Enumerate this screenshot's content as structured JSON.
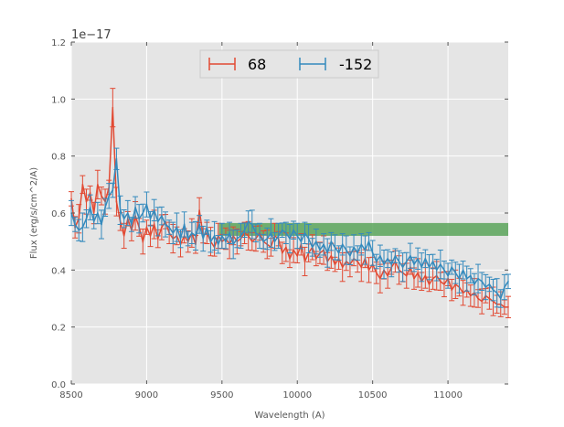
{
  "chart_data": {
    "type": "line",
    "title": "",
    "xlabel": "Wavelength (A)",
    "ylabel": "Flux (erg/s/cm^2/A)",
    "y_offset_label": "1e−17",
    "xlim": [
      8500,
      11400
    ],
    "ylim": [
      0.0,
      1.2
    ],
    "x_ticks": [
      8500,
      9000,
      9500,
      10000,
      10500,
      11000
    ],
    "x_tick_labels": [
      "8500",
      "9000",
      "9500",
      "10000",
      "10500",
      "11000"
    ],
    "y_ticks": [
      0.0,
      0.2,
      0.4,
      0.6,
      0.8,
      1.0,
      1.2
    ],
    "y_tick_labels": [
      "0.0",
      "0.2",
      "0.4",
      "0.6",
      "0.8",
      "1.0",
      "1.2"
    ],
    "grid": true,
    "legend_position": "top-center",
    "band": {
      "x_range": [
        9480,
        11400
      ],
      "y_range": [
        0.52,
        0.565
      ],
      "color": "#5aa55a"
    },
    "series": [
      {
        "name": "68",
        "color": "#E24A33",
        "x_start": 8500,
        "x_step": 25,
        "values": [
          0.65,
          0.55,
          0.58,
          0.7,
          0.64,
          0.67,
          0.6,
          0.7,
          0.66,
          0.64,
          0.69,
          0.97,
          0.64,
          0.57,
          0.52,
          0.58,
          0.54,
          0.59,
          0.55,
          0.5,
          0.55,
          0.52,
          0.56,
          0.51,
          0.55,
          0.57,
          0.53,
          0.51,
          0.52,
          0.49,
          0.52,
          0.5,
          0.53,
          0.49,
          0.61,
          0.52,
          0.53,
          0.5,
          0.48,
          0.52,
          0.5,
          0.51,
          0.49,
          0.52,
          0.5,
          0.51,
          0.53,
          0.52,
          0.5,
          0.51,
          0.53,
          0.5,
          0.49,
          0.48,
          0.52,
          0.51,
          0.46,
          0.48,
          0.44,
          0.47,
          0.45,
          0.49,
          0.43,
          0.46,
          0.48,
          0.44,
          0.46,
          0.47,
          0.43,
          0.45,
          0.42,
          0.44,
          0.41,
          0.43,
          0.42,
          0.44,
          0.43,
          0.41,
          0.44,
          0.4,
          0.42,
          0.39,
          0.37,
          0.4,
          0.38,
          0.41,
          0.43,
          0.4,
          0.39,
          0.38,
          0.41,
          0.37,
          0.39,
          0.36,
          0.38,
          0.35,
          0.37,
          0.38,
          0.36,
          0.35,
          0.37,
          0.33,
          0.35,
          0.34,
          0.32,
          0.33,
          0.31,
          0.32,
          0.3,
          0.29,
          0.31,
          0.3,
          0.29,
          0.28,
          0.28,
          0.27,
          0.27
        ]
      },
      {
        "name": "-152",
        "color": "#348ABD",
        "x_start": 8500,
        "x_step": 25,
        "values": [
          0.6,
          0.56,
          0.54,
          0.55,
          0.58,
          0.62,
          0.57,
          0.6,
          0.56,
          0.62,
          0.66,
          0.68,
          0.79,
          0.61,
          0.58,
          0.6,
          0.56,
          0.62,
          0.58,
          0.6,
          0.63,
          0.58,
          0.61,
          0.57,
          0.59,
          0.56,
          0.55,
          0.53,
          0.55,
          0.51,
          0.56,
          0.51,
          0.53,
          0.52,
          0.56,
          0.51,
          0.55,
          0.5,
          0.52,
          0.49,
          0.52,
          0.5,
          0.53,
          0.49,
          0.51,
          0.52,
          0.54,
          0.57,
          0.56,
          0.53,
          0.52,
          0.5,
          0.51,
          0.53,
          0.5,
          0.52,
          0.54,
          0.53,
          0.51,
          0.54,
          0.52,
          0.5,
          0.53,
          0.51,
          0.48,
          0.5,
          0.47,
          0.49,
          0.46,
          0.5,
          0.48,
          0.46,
          0.49,
          0.47,
          0.45,
          0.48,
          0.46,
          0.49,
          0.47,
          0.5,
          0.46,
          0.43,
          0.45,
          0.42,
          0.44,
          0.42,
          0.45,
          0.43,
          0.41,
          0.43,
          0.45,
          0.42,
          0.44,
          0.41,
          0.44,
          0.41,
          0.43,
          0.4,
          0.42,
          0.4,
          0.38,
          0.41,
          0.39,
          0.37,
          0.4,
          0.37,
          0.38,
          0.35,
          0.37,
          0.36,
          0.34,
          0.35,
          0.33,
          0.32,
          0.3,
          0.34,
          0.36
        ]
      }
    ]
  }
}
